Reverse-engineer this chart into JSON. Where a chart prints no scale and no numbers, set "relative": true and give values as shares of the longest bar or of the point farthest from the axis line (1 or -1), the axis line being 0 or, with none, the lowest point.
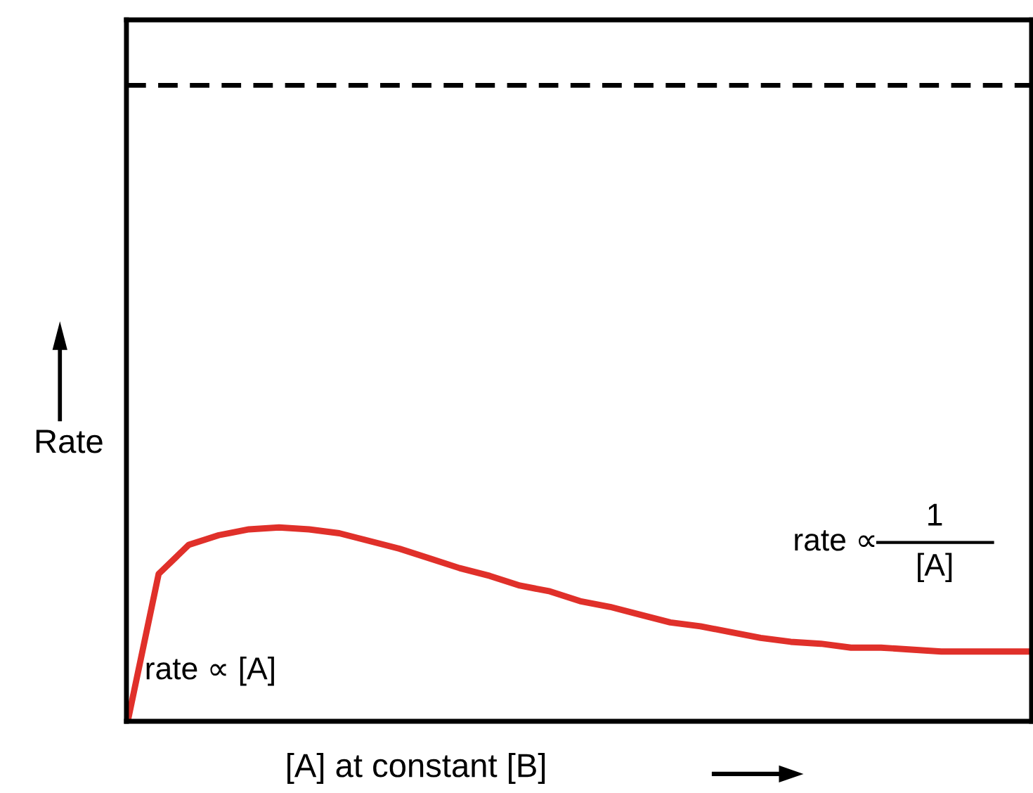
{
  "chart_data": {
    "type": "line",
    "relative": true,
    "xlabel": "[A] at constant [B]",
    "ylabel": "Rate",
    "categories": [
      null,
      null,
      null,
      null,
      null,
      null,
      null,
      null,
      null,
      null,
      null,
      null,
      null,
      null,
      null,
      null,
      null,
      null,
      null,
      null,
      null,
      null,
      null,
      null,
      null,
      null,
      null,
      null,
      null,
      null,
      null
    ],
    "series": [
      {
        "color": "#e0302a",
        "values": [
          0.02,
          0.76,
          0.91,
          0.96,
          0.99,
          1.0,
          0.99,
          0.97,
          0.93,
          0.89,
          0.84,
          0.79,
          0.75,
          0.7,
          0.67,
          0.62,
          0.59,
          0.55,
          0.51,
          0.49,
          0.46,
          0.43,
          0.41,
          0.4,
          0.38,
          0.38,
          0.37,
          0.36,
          0.36,
          0.36,
          0.36
        ]
      }
    ],
    "ref_lines": [
      {
        "axis": "y",
        "value": 3.28,
        "color": "#000000",
        "line_style": "dashed"
      }
    ],
    "annotations": [
      "rate ∝ [A]",
      "rate ∝",
      "1",
      "[A]"
    ],
    "legend": false,
    "marker": "none",
    "line_style": "solid"
  }
}
